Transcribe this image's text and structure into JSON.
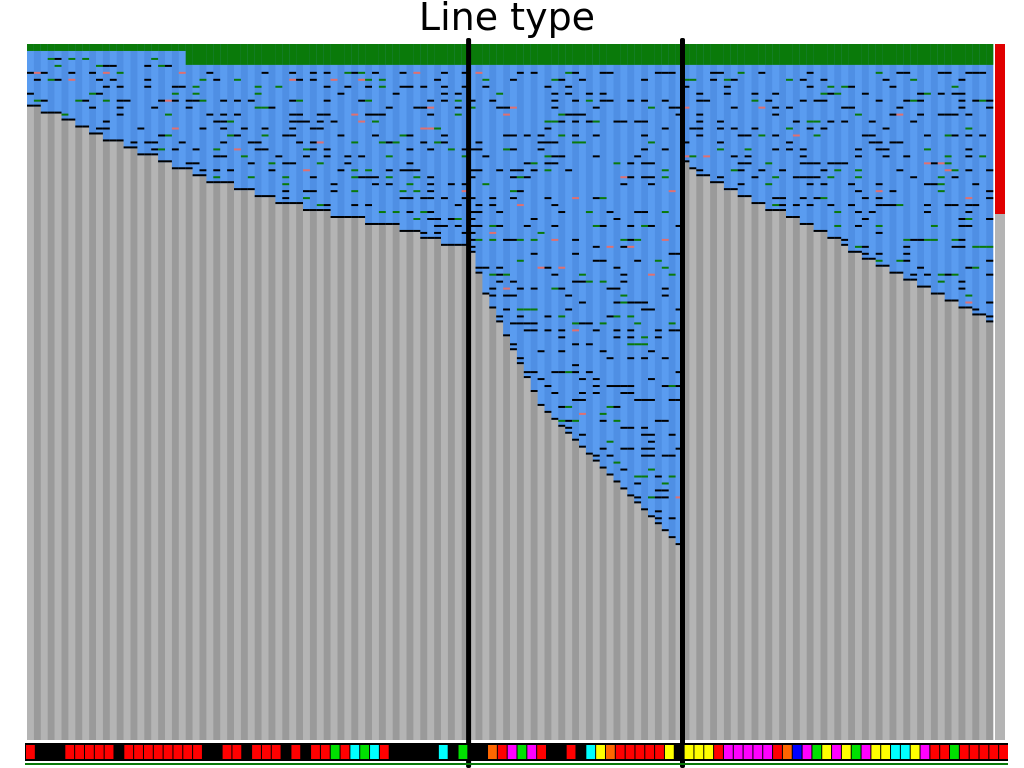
{
  "chart_data": {
    "type": "heatmap",
    "title": "Line type",
    "xlabel": "",
    "ylabel": "",
    "columns": 140,
    "rows": 100,
    "group_boundaries": [
      64,
      95
    ],
    "colors": {
      "background": "#ffffff",
      "empty_cell": "#b4b4b4",
      "empty_cell_stripe": "#9a9a9a",
      "cell_light": "#5a9cf0",
      "cell_dark": "#2f63b8",
      "cell_lines": "#000000",
      "header_band": "#0a7a0a",
      "accent_line": "#e07070",
      "group_divider": "#000000",
      "side_marker": "#e00000"
    },
    "column_depths": [
      9,
      9,
      10,
      10,
      10,
      11,
      11,
      12,
      12,
      13,
      13,
      14,
      14,
      14,
      15,
      15,
      16,
      16,
      16,
      17,
      17,
      18,
      18,
      18,
      19,
      19,
      20,
      20,
      20,
      20,
      21,
      21,
      21,
      22,
      22,
      22,
      23,
      23,
      23,
      23,
      24,
      24,
      24,
      24,
      25,
      25,
      25,
      25,
      25,
      26,
      26,
      26,
      26,
      26,
      27,
      27,
      27,
      28,
      28,
      28,
      29,
      29,
      29,
      29,
      30,
      33,
      36,
      38,
      40,
      42,
      44,
      46,
      48,
      50,
      52,
      53,
      54,
      55,
      56,
      57,
      58,
      59,
      60,
      61,
      62,
      63,
      64,
      65,
      66,
      67,
      68,
      69,
      70,
      71,
      72,
      17,
      18,
      19,
      19,
      20,
      20,
      21,
      21,
      22,
      22,
      23,
      23,
      24,
      24,
      24,
      25,
      25,
      26,
      26,
      27,
      27,
      28,
      28,
      29,
      30,
      30,
      31,
      31,
      32,
      32,
      33,
      33,
      34,
      34,
      35,
      35,
      36,
      36,
      37,
      37,
      38,
      38,
      39,
      39,
      40
    ],
    "category_strip": [
      "red",
      "black",
      "black",
      "black",
      "red",
      "red",
      "red",
      "red",
      "red",
      "black",
      "red",
      "red",
      "red",
      "red",
      "red",
      "red",
      "red",
      "red",
      "black",
      "black",
      "red",
      "red",
      "black",
      "red",
      "red",
      "red",
      "black",
      "red",
      "black",
      "red",
      "red",
      "lime",
      "red",
      "cyan",
      "lime",
      "cyan",
      "red",
      "black",
      "black",
      "black",
      "black",
      "black",
      "cyan",
      "black",
      "lime",
      "black",
      "black",
      "orange",
      "red",
      "magenta",
      "lime",
      "magenta",
      "red",
      "black",
      "black",
      "red",
      "black",
      "cyan",
      "yellow",
      "orange",
      "red",
      "red",
      "red",
      "red",
      "red",
      "yellow",
      "black",
      "yellow",
      "yellow",
      "yellow",
      "red",
      "magenta",
      "magenta",
      "magenta",
      "magenta",
      "magenta",
      "red",
      "orange",
      "blue",
      "magenta",
      "lime",
      "yellow",
      "magenta",
      "yellow",
      "lime",
      "magenta",
      "yellow",
      "yellow",
      "cyan",
      "cyan",
      "yellow",
      "magenta",
      "red",
      "red",
      "lime",
      "red",
      "red",
      "red",
      "red",
      "red"
    ]
  }
}
